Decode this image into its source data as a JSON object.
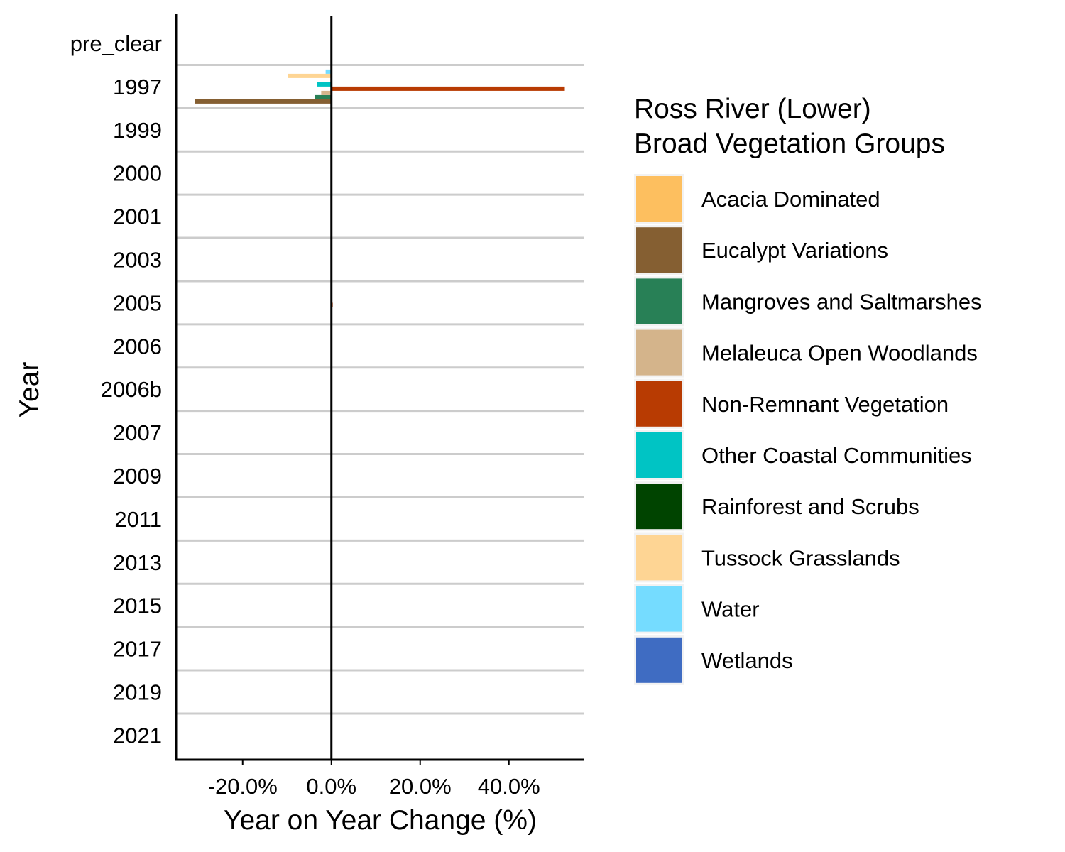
{
  "chart_data": {
    "type": "bar",
    "orientation": "horizontal",
    "xlabel": "Year on Year Change (%)",
    "ylabel": "Year",
    "xlim": [
      -35,
      57
    ],
    "x_ticks": [
      -20,
      0,
      20,
      40
    ],
    "x_tick_labels": [
      "-20.0%",
      "0.0%",
      "20.0%",
      "40.0%"
    ],
    "grid": "horizontal lines between categories",
    "legend_position": "right",
    "legend_title": "Ross River (Lower)\nBroad Vegetation Groups",
    "legend_title_lines": [
      "Ross River (Lower)",
      "Broad Vegetation Groups"
    ],
    "categories": [
      "pre_clear",
      "1997",
      "1999",
      "2000",
      "2001",
      "2003",
      "2005",
      "2006",
      "2006b",
      "2007",
      "2009",
      "2011",
      "2013",
      "2015",
      "2017",
      "2019",
      "2021"
    ],
    "series": [
      {
        "name": "Acacia Dominated",
        "color": "#FDBF5F",
        "values": [
          0,
          0,
          0,
          0,
          0,
          0,
          0,
          0,
          0,
          0,
          0,
          0,
          0,
          0,
          0,
          0,
          0
        ]
      },
      {
        "name": "Eucalypt Variations",
        "color": "#855F32",
        "values": [
          0,
          -30.8,
          0,
          0,
          0,
          0,
          0,
          0,
          0,
          0,
          0,
          0,
          0,
          0,
          0,
          0,
          0
        ]
      },
      {
        "name": "Mangroves and Saltmarshes",
        "color": "#288056",
        "values": [
          0,
          -3.7,
          0,
          0,
          0,
          0,
          0,
          0,
          0,
          0,
          0,
          0,
          0,
          0,
          0,
          0,
          0
        ]
      },
      {
        "name": "Melaleuca Open Woodlands",
        "color": "#D4B48B",
        "values": [
          0,
          -2.3,
          0,
          0,
          0,
          0,
          0,
          0,
          0,
          0,
          0,
          0,
          0,
          0,
          0,
          0,
          0
        ]
      },
      {
        "name": "Non-Remnant Vegetation",
        "color": "#B83B02",
        "values": [
          0,
          52.6,
          0,
          0,
          0,
          0,
          0.3,
          0,
          0,
          0,
          0,
          0,
          0,
          0,
          0,
          0,
          0
        ]
      },
      {
        "name": "Other Coastal Communities",
        "color": "#00C4C4",
        "values": [
          0,
          -3.3,
          0,
          0,
          0,
          0,
          0,
          0,
          0,
          0,
          0,
          0,
          0,
          0,
          0,
          0,
          0
        ]
      },
      {
        "name": "Rainforest and Scrubs",
        "color": "#004400",
        "values": [
          0,
          0,
          0,
          0,
          0,
          0,
          0,
          0,
          0,
          0,
          0,
          0,
          0,
          0,
          0,
          0,
          0
        ]
      },
      {
        "name": "Tussock Grasslands",
        "color": "#FED594",
        "values": [
          0,
          -9.8,
          0,
          0,
          0,
          0,
          0,
          0,
          0,
          0,
          0,
          0,
          0,
          0,
          0,
          0,
          0
        ]
      },
      {
        "name": "Water",
        "color": "#75DCFF",
        "values": [
          0,
          -1.3,
          0,
          0,
          0,
          0,
          0,
          0,
          0,
          0,
          0,
          0,
          0,
          0,
          0,
          0,
          0
        ]
      },
      {
        "name": "Wetlands",
        "color": "#3F6CC2",
        "values": [
          0,
          0,
          0,
          0,
          0,
          0,
          0,
          0,
          0,
          0,
          0,
          0,
          0,
          0,
          0,
          0,
          0
        ]
      }
    ]
  }
}
